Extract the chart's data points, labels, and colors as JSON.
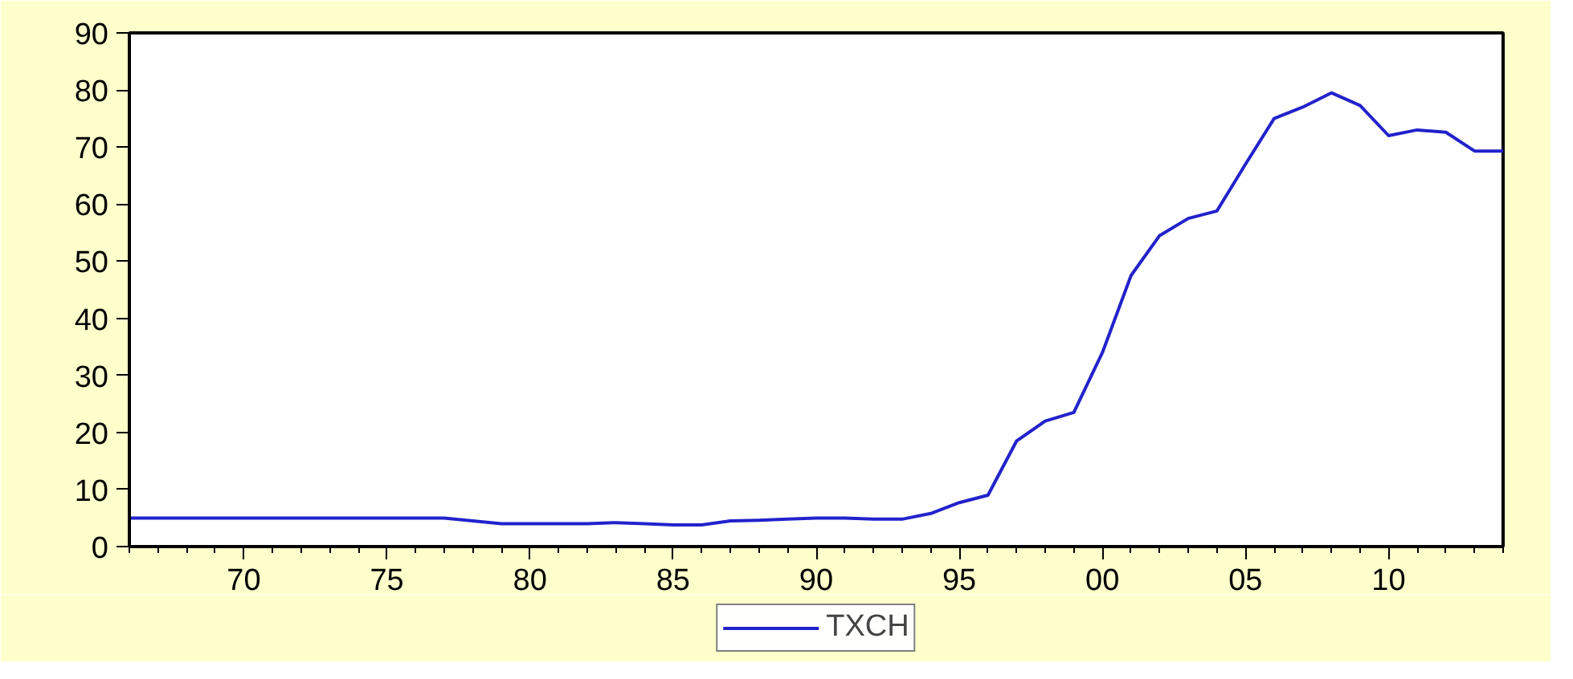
{
  "chart_data": {
    "type": "line",
    "x": [
      1966,
      1967,
      1968,
      1969,
      1970,
      1971,
      1972,
      1973,
      1974,
      1975,
      1976,
      1977,
      1978,
      1979,
      1980,
      1981,
      1982,
      1983,
      1984,
      1985,
      1986,
      1987,
      1988,
      1989,
      1990,
      1991,
      1992,
      1993,
      1994,
      1995,
      1996,
      1997,
      1998,
      1999,
      2000,
      2001,
      2002,
      2003,
      2004,
      2005,
      2006,
      2007,
      2008,
      2009,
      2010,
      2011,
      2012,
      2013,
      2014
    ],
    "series": [
      {
        "name": "TXCH",
        "color": "#2222cc",
        "values": [
          5.0,
          5.0,
          5.0,
          5.0,
          5.0,
          5.0,
          5.0,
          5.0,
          5.0,
          5.0,
          5.0,
          5.0,
          4.5,
          4.0,
          4.0,
          4.0,
          4.0,
          4.2,
          4.0,
          3.8,
          3.8,
          4.5,
          4.6,
          4.8,
          5.0,
          5.0,
          4.8,
          4.8,
          5.8,
          7.7,
          9.0,
          18.5,
          22.0,
          23.5,
          34.0,
          47.5,
          54.5,
          57.5,
          58.8,
          67.0,
          75.0,
          77.0,
          79.5,
          77.3,
          72.0,
          73.0,
          72.6,
          69.3,
          69.3
        ]
      }
    ],
    "xlim": [
      1966,
      2014
    ],
    "xticks": [
      {
        "value": 1970,
        "label": "70"
      },
      {
        "value": 1975,
        "label": "75"
      },
      {
        "value": 1980,
        "label": "80"
      },
      {
        "value": 1985,
        "label": "85"
      },
      {
        "value": 1990,
        "label": "90"
      },
      {
        "value": 1995,
        "label": "95"
      },
      {
        "value": 2000,
        "label": "00"
      },
      {
        "value": 2005,
        "label": "05"
      },
      {
        "value": 2010,
        "label": "10"
      }
    ],
    "ylim": [
      0,
      90
    ],
    "yticks": [
      0,
      10,
      20,
      30,
      40,
      50,
      60,
      70,
      80,
      90
    ],
    "grid": false,
    "legend": "bottom",
    "marker": "none",
    "line_style": "solid"
  }
}
